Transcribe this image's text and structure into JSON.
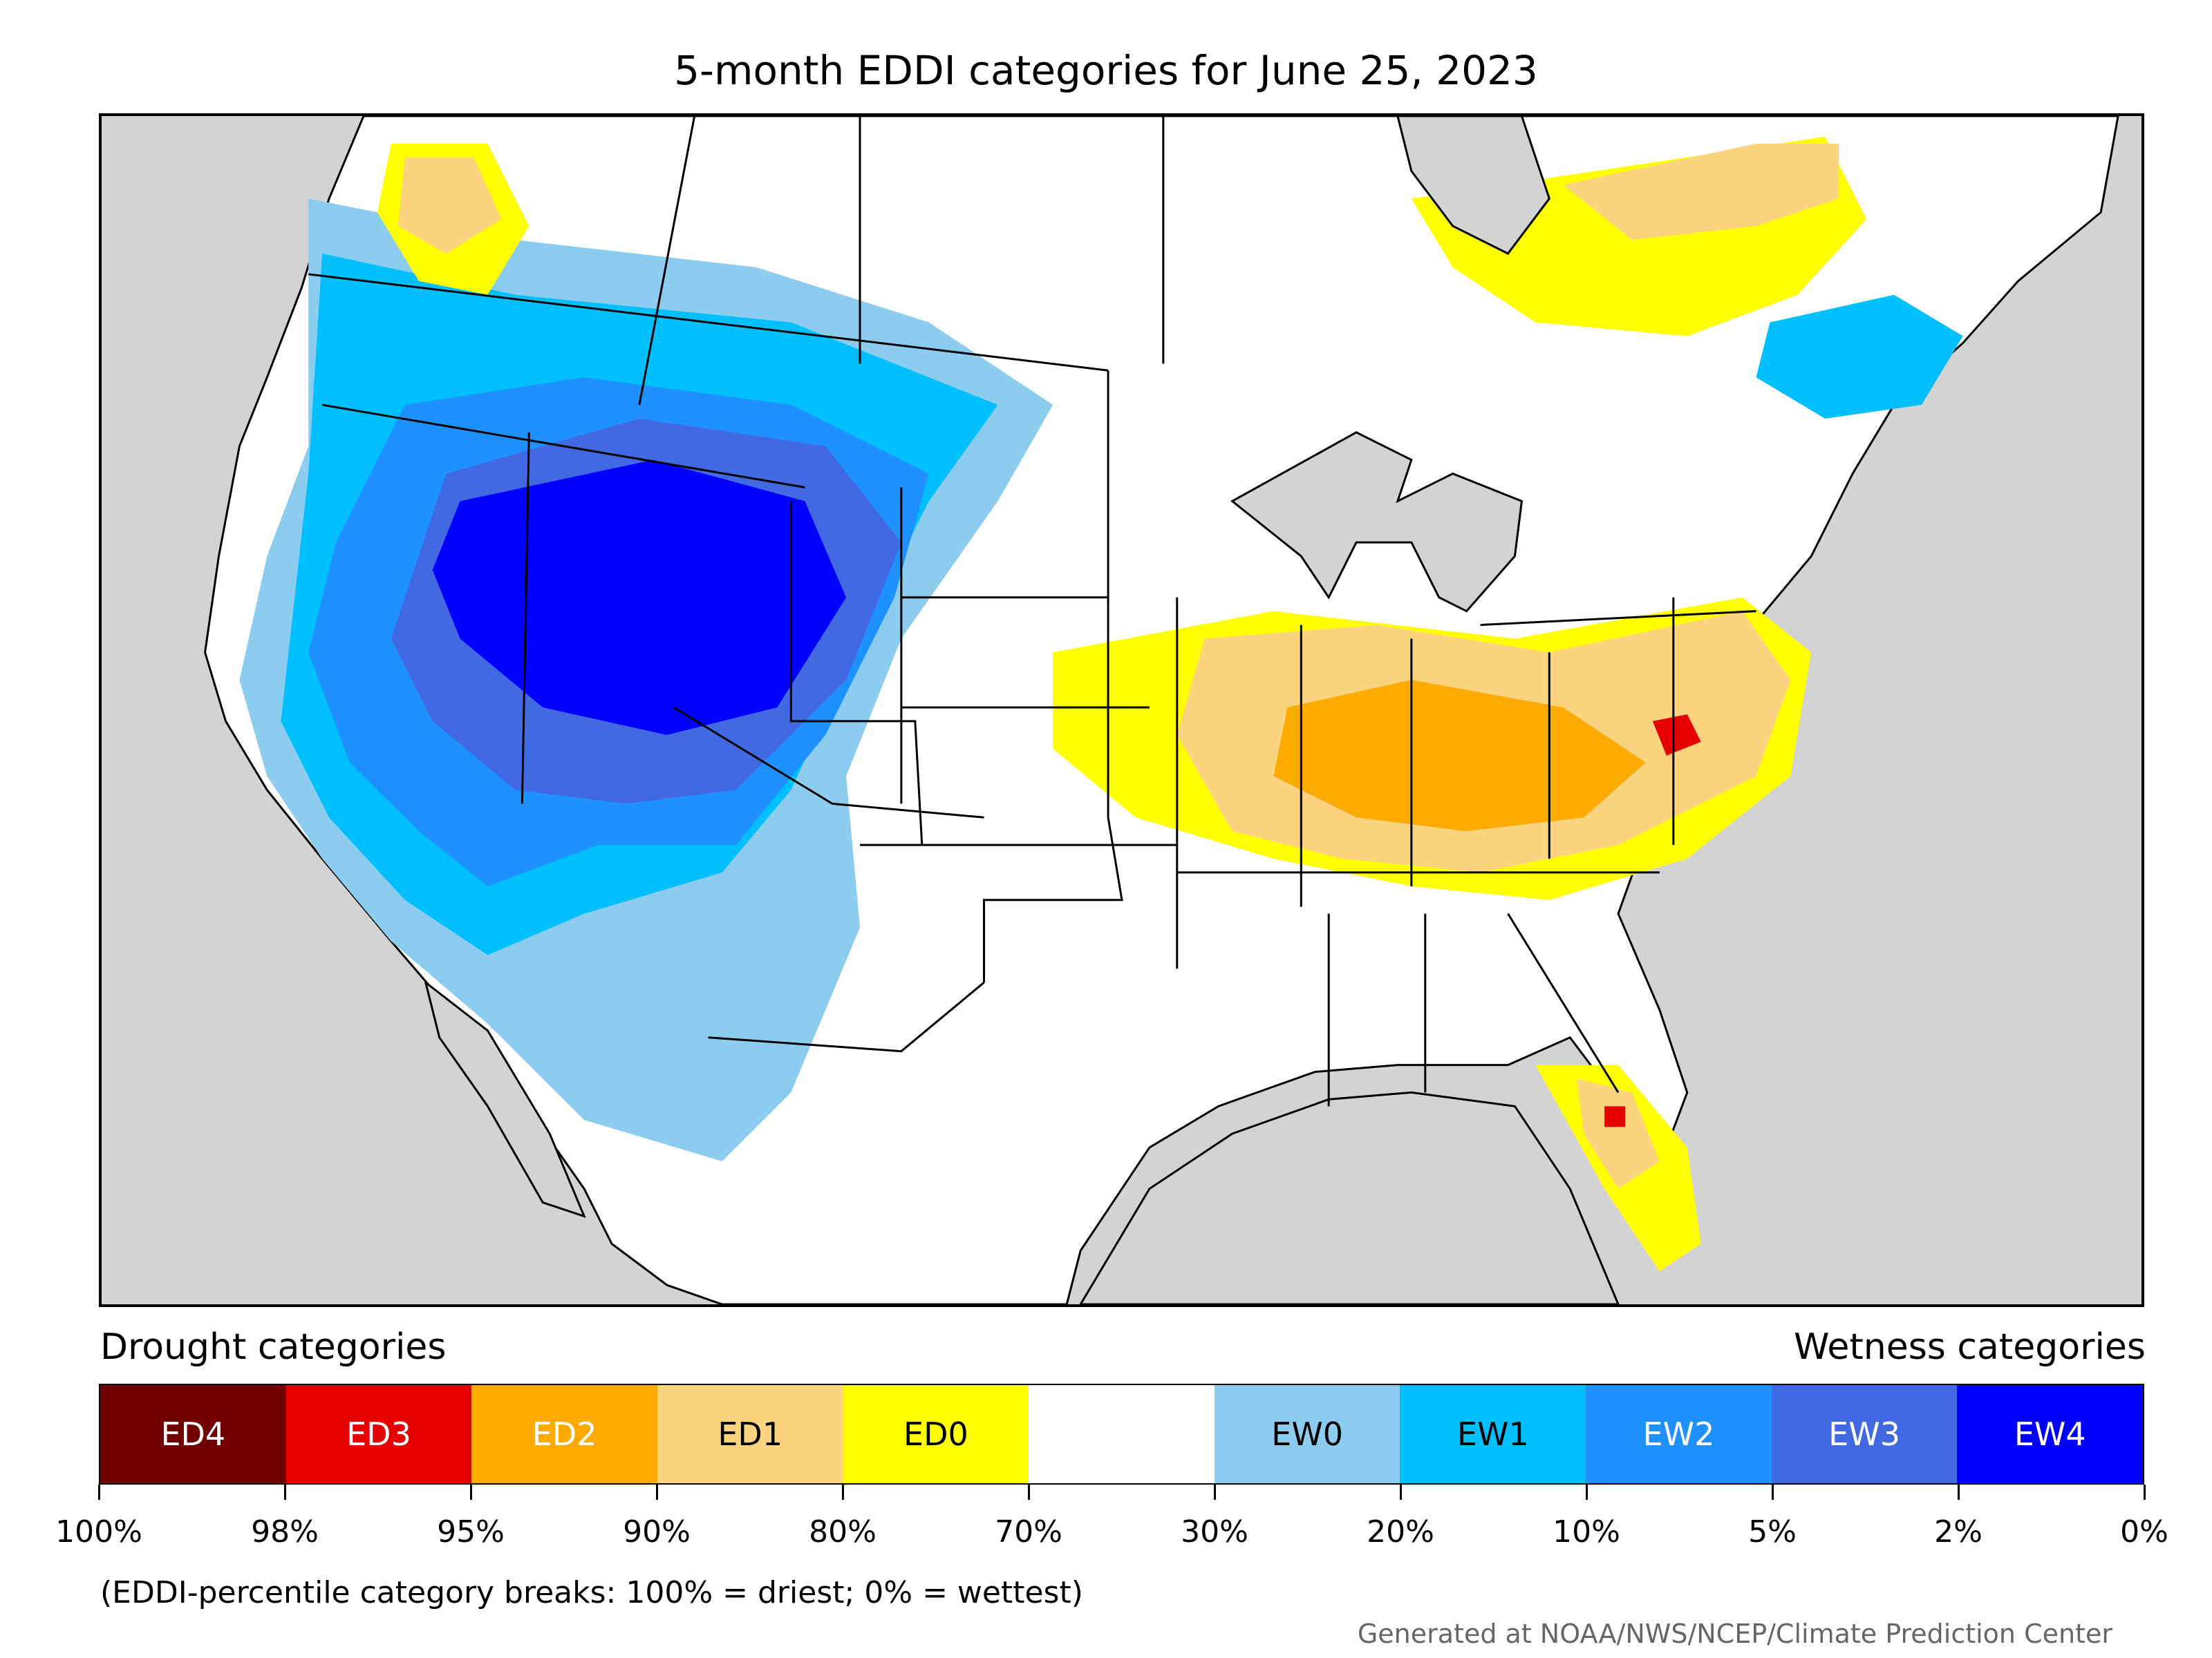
{
  "title": "5-month EDDI categories for June 25, 2023",
  "legend": {
    "left_label": "Drought categories",
    "right_label": "Wetness categories",
    "categories": [
      {
        "label": "ED4",
        "color": "#730000",
        "text_color": "#ffffff"
      },
      {
        "label": "ED3",
        "color": "#e60000",
        "text_color": "#ffffff"
      },
      {
        "label": "ED2",
        "color": "#ffaa00",
        "text_color": "#ffffff"
      },
      {
        "label": "ED1",
        "color": "#fcd37f",
        "text_color": "#000000"
      },
      {
        "label": "ED0",
        "color": "#ffff00",
        "text_color": "#000000"
      },
      {
        "label": "",
        "color": "#ffffff",
        "text_color": "#000000"
      },
      {
        "label": "EW0",
        "color": "#8ccdef",
        "text_color": "#000000"
      },
      {
        "label": "EW1",
        "color": "#00bfff",
        "text_color": "#000000"
      },
      {
        "label": "EW2",
        "color": "#1e90ff",
        "text_color": "#ffffff"
      },
      {
        "label": "EW3",
        "color": "#4169e1",
        "text_color": "#ffffff"
      },
      {
        "label": "EW4",
        "color": "#0000ff",
        "text_color": "#ffffff"
      }
    ],
    "tick_labels": [
      "100%",
      "98%",
      "95%",
      "90%",
      "80%",
      "70%",
      "30%",
      "20%",
      "10%",
      "5%",
      "2%",
      "0%"
    ]
  },
  "note": "(EDDI-percentile category breaks: 100% = driest; 0% = wettest)",
  "credit": "Generated at NOAA/NWS/NCEP/Climate Prediction Center",
  "colors": {
    "background_land_outside": "#d3d3d3",
    "land": "#ffffff",
    "water": "#d3d3d3"
  }
}
